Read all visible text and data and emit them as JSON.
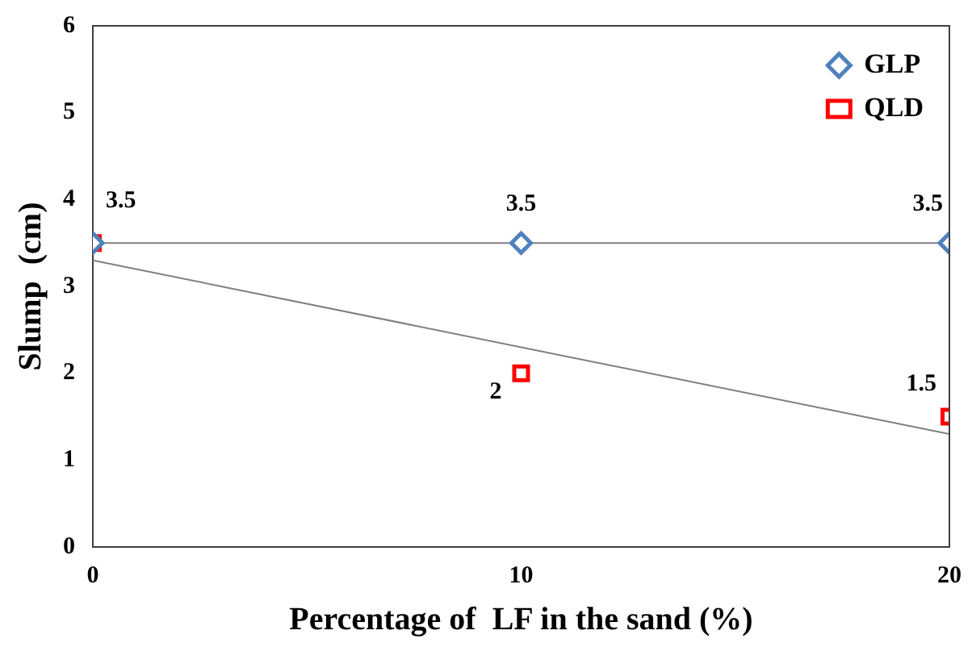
{
  "chart_data": {
    "type": "scatter",
    "xlabel": "Percentage of  LF in the sand (%)",
    "ylabel": "Slump  (cm)",
    "xlim": [
      0,
      20
    ],
    "xticks": [
      0,
      10,
      20
    ],
    "ylim": [
      0,
      6
    ],
    "yticks": [
      0,
      1,
      2,
      3,
      4,
      5,
      6
    ],
    "grid": false,
    "legend": "top right",
    "series": [
      {
        "name": "GLP",
        "color": "#4f81bd",
        "marker": "diamond",
        "x": [
          0,
          10,
          20
        ],
        "values": [
          3.5,
          3.5,
          3.5
        ],
        "value_labels": [
          null,
          "3.5",
          "3.5"
        ]
      },
      {
        "name": "QLD",
        "color": "#ff0000",
        "marker": "square",
        "x": [
          0,
          10,
          20
        ],
        "values": [
          3.5,
          2,
          1.5
        ],
        "value_labels": [
          "3.5",
          "2",
          "1.5"
        ]
      },
      {
        "type": "line",
        "color": "#7f7f7f",
        "marker": "none",
        "x": [
          0,
          20
        ],
        "values": [
          3.5,
          3.5
        ]
      },
      {
        "type": "line",
        "color": "#7f7f7f",
        "marker": "none",
        "x": [
          0,
          20
        ],
        "values": [
          3.3,
          1.3
        ]
      }
    ]
  }
}
